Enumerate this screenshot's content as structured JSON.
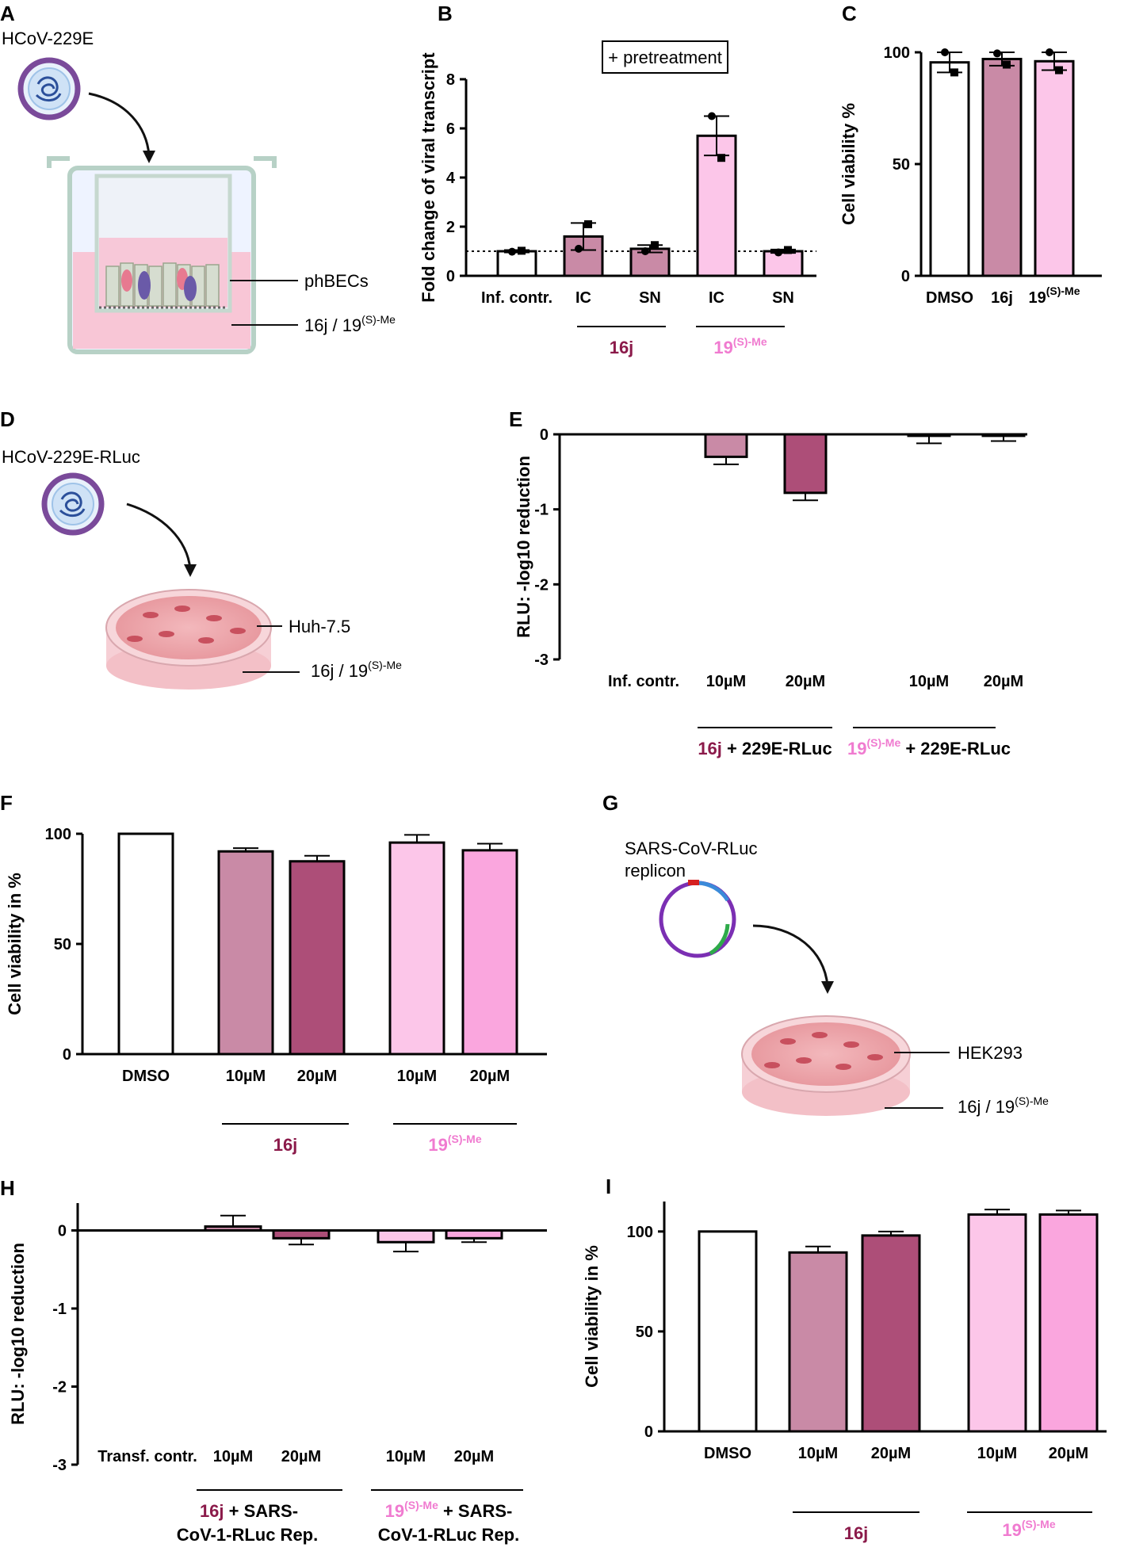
{
  "colors": {
    "c16j": "#8b1a4a",
    "c19": "#f07bd0",
    "bar_white": "#ffffff",
    "bar_16j_light": "#c98aa6",
    "bar_16j_dark": "#ad4e78",
    "bar_19_light": "#fcc6e9",
    "bar_19_dark": "#faa6de"
  },
  "labels": {
    "compound_16j": "16j",
    "compound_19": "19",
    "compound_19_sup": "(S)-Me",
    "separator": " / "
  },
  "panel_a": {
    "letter": "A",
    "virus": "HCoV-229E",
    "cells": "phBECs",
    "compound": "16j / 19",
    "compound_sup": "(S)-Me"
  },
  "panel_d": {
    "letter": "D",
    "virus": "HCoV-229E-RLuc",
    "cells": "Huh-7.5",
    "compound": "16j / 19",
    "compound_sup": "(S)-Me"
  },
  "panel_g": {
    "letter": "G",
    "virus_line1": "SARS-CoV-RLuc",
    "virus_line2": "replicon",
    "cells": "HEK293",
    "compound": "16j / 19",
    "compound_sup": "(S)-Me"
  },
  "panel_b_extra": {
    "annotation": "+ pretreatment",
    "group1": "16j",
    "group2": "19",
    "group2_sup": "(S)-Me"
  },
  "panel_e_extra": {
    "group1_a": "16j",
    "group1_b": " + 229E-RLuc",
    "group2_a": "19",
    "group2_sup": "(S)-Me",
    "group2_b": " + 229E-RLuc"
  },
  "panel_f_extra": {
    "group1": "16j",
    "group2": "19",
    "group2_sup": "(S)-Me"
  },
  "panel_h_extra": {
    "group1_a": "16j",
    "group1_b": " + SARS-",
    "group1_c": "CoV-1-RLuc Rep.",
    "group2_a": "19",
    "group2_sup": "(S)-Me",
    "group2_b": " + SARS-",
    "group2_c": "CoV-1-RLuc Rep."
  },
  "panel_i_extra": {
    "group1": "16j",
    "group2": "19",
    "group2_sup": "(S)-Me"
  },
  "chart_data": [
    {
      "id": "B",
      "letter": "B",
      "type": "bar",
      "title": "",
      "ylabel": "Fold change of viral transcript",
      "ylim": [
        0,
        8
      ],
      "yticks": [
        0,
        2,
        4,
        6,
        8
      ],
      "categories": [
        "Inf. contr.",
        "IC",
        "SN",
        "IC",
        "SN"
      ],
      "values": [
        1.0,
        1.6,
        1.1,
        5.7,
        1.0
      ],
      "errors": [
        0.05,
        0.55,
        0.15,
        0.8,
        0.07
      ],
      "points": [
        [
          0.98,
          1.02
        ],
        [
          1.1,
          2.1
        ],
        [
          1.0,
          1.25
        ],
        [
          6.5,
          4.8
        ],
        [
          0.95,
          1.05
        ]
      ],
      "reference_line": 1,
      "colors": [
        "#ffffff",
        "#c98aa6",
        "#c98aa6",
        "#fcc6e9",
        "#fcc6e9"
      ]
    },
    {
      "id": "C",
      "letter": "C",
      "type": "bar",
      "ylabel": "Cell viability %",
      "ylim": [
        0,
        100
      ],
      "yticks": [
        0,
        50,
        100
      ],
      "categories": [
        "DMSO",
        "16j",
        "19"
      ],
      "category_sups": [
        "",
        "",
        "(S)-Me"
      ],
      "values": [
        95.5,
        97,
        96
      ],
      "errors": [
        4.5,
        3,
        4
      ],
      "points": [
        [
          100,
          91
        ],
        [
          99.5,
          94.5
        ],
        [
          100,
          92
        ]
      ],
      "colors": [
        "#ffffff",
        "#c98aa6",
        "#fcc6e9"
      ]
    },
    {
      "id": "E",
      "letter": "E",
      "type": "bar",
      "ylabel": "RLU: -log10 reduction",
      "ylim": [
        -3,
        0
      ],
      "yticks": [
        0,
        -1,
        -2,
        -3
      ],
      "categories": [
        "Inf. contr.",
        "10µM",
        "20µM",
        "10µM",
        "20µM"
      ],
      "values": [
        0,
        -0.3,
        -0.78,
        -0.02,
        -0.02
      ],
      "errors": [
        0,
        0.1,
        0.1,
        0.1,
        0.07
      ],
      "colors": [
        "#ffffff",
        "#c98aa6",
        "#ad4e78",
        "#fcc6e9",
        "#faa6de"
      ]
    },
    {
      "id": "F",
      "letter": "F",
      "type": "bar",
      "ylabel": "Cell viability in %",
      "ylim": [
        0,
        100
      ],
      "yticks": [
        0,
        50,
        100
      ],
      "categories": [
        "DMSO",
        "10µM",
        "20µM",
        "10µM",
        "20µM"
      ],
      "values": [
        100,
        92,
        87.5,
        96,
        92.5
      ],
      "errors": [
        0,
        1.5,
        2.5,
        3.5,
        3
      ],
      "colors": [
        "#ffffff",
        "#c98aa6",
        "#ad4e78",
        "#fcc6e9",
        "#faa6de"
      ]
    },
    {
      "id": "H",
      "letter": "H",
      "type": "bar",
      "ylabel": "RLU: -log10 reduction",
      "ylim": [
        -3,
        0.35
      ],
      "yticks": [
        0,
        -1,
        -2,
        -3
      ],
      "categories": [
        "Transf. contr.",
        "10µM",
        "20µM",
        "10µM",
        "20µM"
      ],
      "values": [
        0,
        0.05,
        -0.1,
        -0.15,
        -0.1
      ],
      "errors": [
        0,
        0.14,
        0.08,
        0.12,
        0.05
      ],
      "colors": [
        "#ffffff",
        "#c98aa6",
        "#ad4e78",
        "#fcc6e9",
        "#faa6de"
      ]
    },
    {
      "id": "I",
      "letter": "I",
      "type": "bar",
      "ylabel": "Cell viability in %",
      "ylim": [
        0,
        115
      ],
      "yticks": [
        0,
        50,
        100
      ],
      "categories": [
        "DMSO",
        "10µM",
        "20µM",
        "10µM",
        "20µM"
      ],
      "values": [
        100,
        89.5,
        98,
        108.5,
        108.5
      ],
      "errors": [
        0,
        3,
        2,
        2.5,
        2
      ],
      "colors": [
        "#ffffff",
        "#c98aa6",
        "#ad4e78",
        "#fcc6e9",
        "#faa6de"
      ]
    }
  ]
}
